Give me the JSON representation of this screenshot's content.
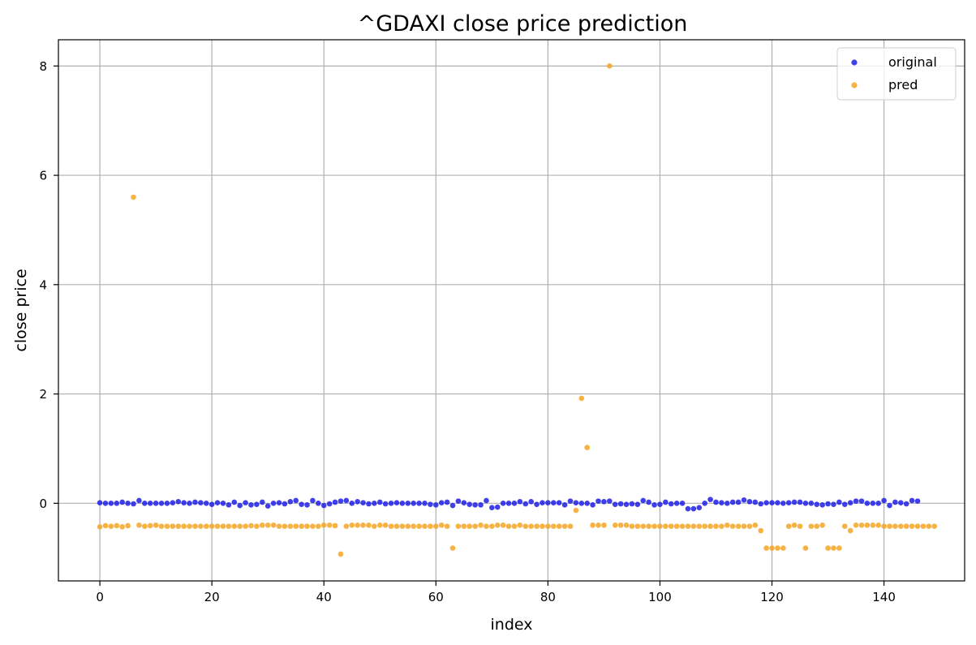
{
  "chart_data": {
    "type": "scatter",
    "title": "^GDAXI close price prediction",
    "xlabel": "index",
    "ylabel": "close price",
    "xlim": [
      -7.4,
      154.4
    ],
    "ylim": [
      -1.42,
      8.48
    ],
    "xticks": [
      0,
      20,
      40,
      60,
      80,
      100,
      120,
      140
    ],
    "yticks": [
      0,
      2,
      4,
      6,
      8
    ],
    "grid": true,
    "legend_position": "top-right",
    "series": [
      {
        "name": "original",
        "color": "#1f1fe6",
        "values": [
          0.01,
          0.0,
          0.0,
          0.0,
          0.02,
          0.0,
          -0.01,
          0.05,
          0.0,
          0.0,
          0.0,
          0.0,
          0.0,
          0.01,
          0.03,
          0.01,
          0.0,
          0.02,
          0.01,
          0.0,
          -0.02,
          0.01,
          0.0,
          -0.03,
          0.02,
          -0.04,
          0.01,
          -0.03,
          -0.02,
          0.02,
          -0.05,
          0.0,
          0.01,
          -0.01,
          0.03,
          0.05,
          -0.02,
          -0.03,
          0.05,
          0.0,
          -0.04,
          -0.01,
          0.02,
          0.04,
          0.05,
          0.0,
          0.03,
          0.01,
          -0.01,
          0.0,
          0.02,
          -0.01,
          0.0,
          0.01,
          0.0,
          0.0,
          0.0,
          0.0,
          0.0,
          -0.02,
          -0.03,
          0.01,
          0.02,
          -0.04,
          0.04,
          0.01,
          -0.02,
          -0.03,
          -0.03,
          0.05,
          -0.08,
          -0.07,
          0.0,
          0.0,
          0.0,
          0.03,
          -0.01,
          0.03,
          -0.02,
          0.01,
          0.01,
          0.01,
          0.01,
          -0.03,
          0.04,
          0.01,
          0.0,
          0.0,
          -0.03,
          0.04,
          0.03,
          0.04,
          -0.02,
          -0.01,
          -0.02,
          -0.01,
          -0.02,
          0.05,
          0.02,
          -0.03,
          -0.02,
          0.02,
          -0.01,
          0.0,
          0.0,
          -0.1,
          -0.1,
          -0.08,
          0.0,
          0.07,
          0.02,
          0.01,
          0.0,
          0.02,
          0.02,
          0.06,
          0.03,
          0.02,
          -0.01,
          0.01,
          0.01,
          0.01,
          0.0,
          0.01,
          0.02,
          0.02,
          0.0,
          0.0,
          -0.02,
          -0.03,
          -0.01,
          -0.02,
          0.02,
          -0.02,
          0.01,
          0.04,
          0.04,
          0.0,
          0.0,
          0.0,
          0.05,
          -0.04,
          0.02,
          0.01,
          -0.01,
          0.05,
          0.04
        ]
      },
      {
        "name": "pred",
        "color": "#f5a623",
        "values": [
          -0.43,
          -0.41,
          -0.42,
          -0.41,
          -0.43,
          -0.41,
          5.6,
          -0.4,
          -0.42,
          -0.41,
          -0.4,
          -0.42,
          -0.42,
          -0.42,
          -0.42,
          -0.42,
          -0.42,
          -0.42,
          -0.42,
          -0.42,
          -0.42,
          -0.42,
          -0.42,
          -0.42,
          -0.42,
          -0.42,
          -0.42,
          -0.41,
          -0.42,
          -0.4,
          -0.4,
          -0.4,
          -0.42,
          -0.42,
          -0.42,
          -0.42,
          -0.42,
          -0.42,
          -0.42,
          -0.42,
          -0.4,
          -0.4,
          -0.41,
          -0.93,
          -0.42,
          -0.4,
          -0.4,
          -0.4,
          -0.4,
          -0.42,
          -0.4,
          -0.4,
          -0.42,
          -0.42,
          -0.42,
          -0.42,
          -0.42,
          -0.42,
          -0.42,
          -0.42,
          -0.42,
          -0.4,
          -0.42,
          -0.82,
          -0.42,
          -0.42,
          -0.42,
          -0.42,
          -0.4,
          -0.42,
          -0.42,
          -0.4,
          -0.4,
          -0.42,
          -0.42,
          -0.4,
          -0.42,
          -0.42,
          -0.42,
          -0.42,
          -0.42,
          -0.42,
          -0.42,
          -0.42,
          -0.42,
          -0.13,
          1.92,
          1.02,
          -0.4,
          -0.4,
          -0.4,
          8.0,
          -0.4,
          -0.4,
          -0.4,
          -0.42,
          -0.42,
          -0.42,
          -0.42,
          -0.42,
          -0.42,
          -0.42,
          -0.42,
          -0.42,
          -0.42,
          -0.42,
          -0.42,
          -0.42,
          -0.42,
          -0.42,
          -0.42,
          -0.42,
          -0.4,
          -0.42,
          -0.42,
          -0.42,
          -0.42,
          -0.4,
          -0.5,
          -0.82,
          -0.82,
          -0.82,
          -0.82,
          -0.42,
          -0.4,
          -0.42,
          -0.82,
          -0.42,
          -0.42,
          -0.4,
          -0.82,
          -0.82,
          -0.82,
          -0.42,
          -0.5,
          -0.4,
          -0.4,
          -0.4,
          -0.4,
          -0.4,
          -0.42,
          -0.42,
          -0.42,
          -0.42,
          -0.42,
          -0.42,
          -0.42,
          -0.42,
          -0.42,
          -0.42
        ]
      }
    ]
  }
}
